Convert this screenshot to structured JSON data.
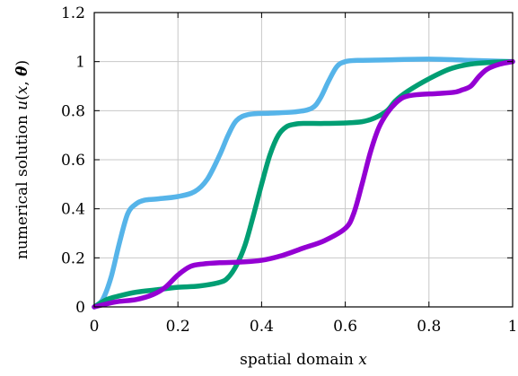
{
  "chart_data": {
    "type": "line",
    "xlabel_text": "spatial domain ",
    "xlabel_var": "x",
    "ylabel_text": "numerical solution ",
    "ylabel_func": "u",
    "ylabel_open": "(",
    "ylabel_x": "x",
    "ylabel_comma": ", ",
    "ylabel_theta": "θ",
    "ylabel_close": ")",
    "xlim": [
      0,
      1
    ],
    "ylim": [
      0,
      1.2
    ],
    "x_ticks": [
      0,
      0.2,
      0.4,
      0.6,
      0.8,
      1
    ],
    "x_tick_labels": [
      "0",
      "0.2",
      "0.4",
      "0.6",
      "0.8",
      "1"
    ],
    "y_ticks": [
      0,
      0.2,
      0.4,
      0.6,
      0.8,
      1,
      1.2
    ],
    "y_tick_labels": [
      "0",
      "0.2",
      "0.4",
      "0.6",
      "0.8",
      "1",
      "1.2"
    ],
    "grid": true,
    "series": [
      {
        "color": "#56b4e9",
        "x": [
          0,
          0.02,
          0.04,
          0.06,
          0.08,
          0.1,
          0.12,
          0.15,
          0.2,
          0.24,
          0.27,
          0.3,
          0.32,
          0.34,
          0.37,
          0.42,
          0.48,
          0.52,
          0.54,
          0.56,
          0.58,
          0.6,
          0.63,
          0.7,
          0.8,
          0.9,
          1.0
        ],
        "y": [
          0,
          0.03,
          0.12,
          0.26,
          0.38,
          0.42,
          0.435,
          0.44,
          0.45,
          0.47,
          0.52,
          0.62,
          0.7,
          0.76,
          0.785,
          0.79,
          0.795,
          0.81,
          0.85,
          0.92,
          0.98,
          1.0,
          1.005,
          1.007,
          1.01,
          1.005,
          1.0
        ]
      },
      {
        "color": "#009e73",
        "x": [
          0,
          0.03,
          0.06,
          0.1,
          0.15,
          0.2,
          0.25,
          0.3,
          0.32,
          0.34,
          0.36,
          0.38,
          0.4,
          0.42,
          0.44,
          0.46,
          0.48,
          0.5,
          0.55,
          0.6,
          0.64,
          0.67,
          0.7,
          0.72,
          0.75,
          0.8,
          0.85,
          0.9,
          0.95,
          1.0
        ],
        "y": [
          0,
          0.03,
          0.045,
          0.06,
          0.07,
          0.08,
          0.085,
          0.1,
          0.12,
          0.17,
          0.25,
          0.37,
          0.5,
          0.62,
          0.7,
          0.735,
          0.745,
          0.748,
          0.748,
          0.75,
          0.755,
          0.77,
          0.8,
          0.84,
          0.88,
          0.93,
          0.97,
          0.99,
          0.997,
          1.0
        ]
      },
      {
        "color": "#9400d3",
        "x": [
          0,
          0.05,
          0.1,
          0.14,
          0.17,
          0.2,
          0.23,
          0.26,
          0.3,
          0.35,
          0.4,
          0.45,
          0.5,
          0.55,
          0.6,
          0.62,
          0.64,
          0.66,
          0.68,
          0.7,
          0.72,
          0.74,
          0.77,
          0.82,
          0.86,
          0.88,
          0.9,
          0.92,
          0.94,
          0.97,
          1.0
        ],
        "y": [
          0,
          0.02,
          0.03,
          0.05,
          0.08,
          0.13,
          0.165,
          0.175,
          0.18,
          0.183,
          0.19,
          0.21,
          0.24,
          0.27,
          0.32,
          0.38,
          0.5,
          0.63,
          0.73,
          0.79,
          0.83,
          0.855,
          0.865,
          0.87,
          0.875,
          0.885,
          0.9,
          0.94,
          0.97,
          0.99,
          1.0
        ]
      }
    ]
  }
}
